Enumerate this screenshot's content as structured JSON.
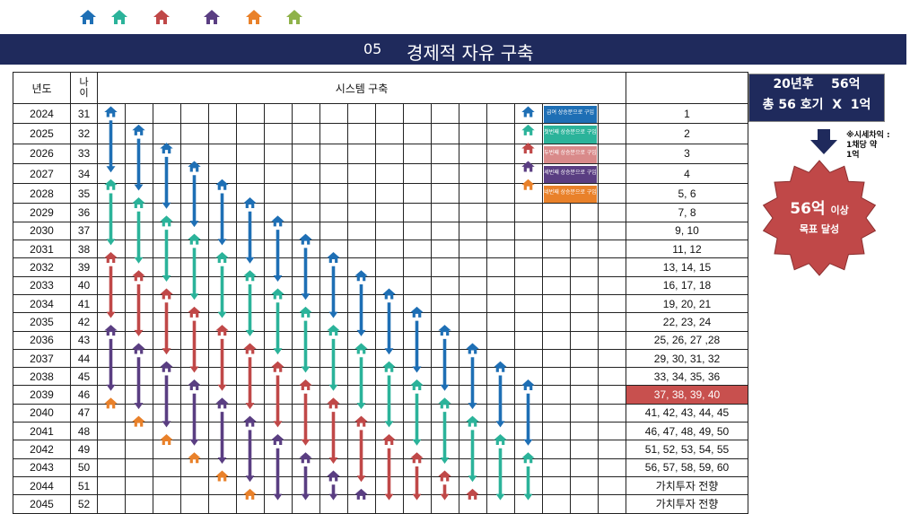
{
  "colors": {
    "blue": "#1e6fb5",
    "teal": "#2bb39a",
    "red": "#c04848",
    "purple": "#5a3e82",
    "orange": "#e9812a",
    "green": "#8fb24a",
    "navy": "#1f2a5c",
    "highlight": "#c8504e"
  },
  "header_icons": [
    "house-icon-blue",
    "house-icon-teal",
    "house-icon-red",
    "house-icon-purple",
    "house-icon-orange",
    "house-icon-green"
  ],
  "banner": {
    "number": "05",
    "title": "경제적 자유 구축"
  },
  "table": {
    "col_year": "년도",
    "col_age": "나\n이",
    "col_system": "시스템 구축",
    "rows": [
      {
        "year": "2024",
        "age": "31",
        "count": "1"
      },
      {
        "year": "2025",
        "age": "32",
        "count": "2"
      },
      {
        "year": "2026",
        "age": "33",
        "count": "3"
      },
      {
        "year": "2027",
        "age": "34",
        "count": "4"
      },
      {
        "year": "2028",
        "age": "35",
        "count": "5, 6"
      },
      {
        "year": "2029",
        "age": "36",
        "count": "7, 8"
      },
      {
        "year": "2030",
        "age": "37",
        "count": "9, 10"
      },
      {
        "year": "2031",
        "age": "38",
        "count": "11, 12"
      },
      {
        "year": "2032",
        "age": "39",
        "count": "13, 14, 15"
      },
      {
        "year": "2033",
        "age": "40",
        "count": "16, 17, 18"
      },
      {
        "year": "2034",
        "age": "41",
        "count": "19, 20, 21"
      },
      {
        "year": "2035",
        "age": "42",
        "count": "22, 23, 24"
      },
      {
        "year": "2036",
        "age": "43",
        "count": "25, 26, 27 ,28"
      },
      {
        "year": "2037",
        "age": "44",
        "count": "29, 30, 31, 32"
      },
      {
        "year": "2038",
        "age": "45",
        "count": "33, 34, 35, 36"
      },
      {
        "year": "2039",
        "age": "46",
        "count": "37, 38, 39, 40"
      },
      {
        "year": "2040",
        "age": "47",
        "count": "41, 42, 43, 44, 45"
      },
      {
        "year": "2041",
        "age": "48",
        "count": "46, 47, 48, 49, 50"
      },
      {
        "year": "2042",
        "age": "49",
        "count": "51, 52, 53, 54, 55"
      },
      {
        "year": "2043",
        "age": "50",
        "count": "56, 57, 58, 59, 60"
      },
      {
        "year": "2044",
        "age": "51",
        "count": "가치투자 전향"
      },
      {
        "year": "2045",
        "age": "52",
        "count": "가치투자 전향"
      }
    ],
    "highlight_row": 15
  },
  "legend": [
    {
      "label": "급여 상승분으로 구입",
      "color": "#1e6fb5"
    },
    {
      "label": "첫번째 상승분으로 구입",
      "color": "#2bb39a"
    },
    {
      "label": "두번째 상승분으로 구입",
      "color": "#d98a8a"
    },
    {
      "label": "세번째 상승분으로 구입",
      "color": "#5a3e82"
    },
    {
      "label": "네번째 상승분으로 구입",
      "color": "#e9812a"
    }
  ],
  "callout": {
    "line1": "20년후    56억",
    "line2": "총 56 호기  X  1억"
  },
  "note": {
    "line1": "※시세차익 :",
    "line2": "1채당 약",
    "line3": "1억"
  },
  "star": {
    "big": "56억",
    "small": "이상",
    "line2": "목표 달성",
    "color": "#c04848"
  }
}
